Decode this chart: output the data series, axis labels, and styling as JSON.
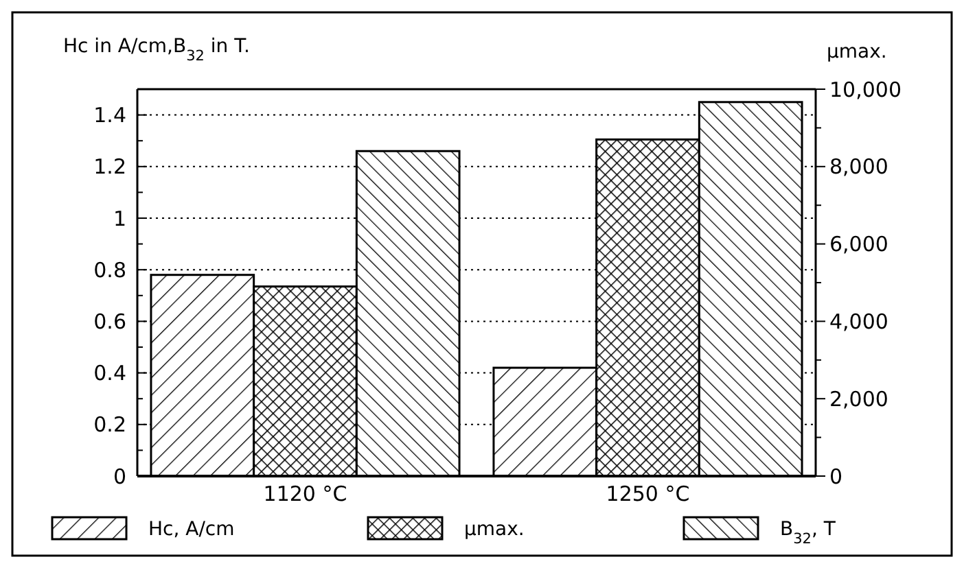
{
  "chart_data": {
    "type": "bar",
    "ylabel": "Hc in A/cm,B$_{32}$ in T.",
    "y2label": "μmax.",
    "categories": [
      "1120 °C",
      "1250 °C"
    ],
    "series": [
      {
        "name": "Hc, A/cm",
        "color": "#000000",
        "values": [
          0.78,
          0.42
        ]
      },
      {
        "name": "μmax.",
        "color": "#000000",
        "values": [
          4900,
          8700
        ],
        "axis": "y2"
      },
      {
        "name": "B$_{32}$, T",
        "color": "#000000",
        "values": [
          1.26,
          1.45
        ]
      }
    ],
    "ylim": [
      0,
      1.5
    ],
    "yticks": [
      0,
      {
        "value": 0.1,
        "label": null
      },
      0.2,
      {
        "value": 0.3,
        "label": null
      },
      0.4,
      {
        "value": 0.5,
        "label": null
      },
      0.6,
      {
        "value": 0.7,
        "label": null
      },
      0.8,
      {
        "value": 0.9,
        "label": null
      },
      1,
      {
        "value": 1.1,
        "label": null
      },
      1.2,
      {
        "value": 1.3,
        "label": null
      },
      1.4
    ],
    "y2lim": [
      0,
      10000
    ],
    "y2ticks": [
      0,
      {
        "value": 1000,
        "label": null
      },
      {
        "value": 2000,
        "label": "2,000"
      },
      {
        "value": 3000,
        "label": null
      },
      {
        "value": 4000,
        "label": "4,000"
      },
      {
        "value": 5000,
        "label": null
      },
      {
        "value": 6000,
        "label": "6,000"
      },
      {
        "value": 7000,
        "label": null
      },
      {
        "value": 8000,
        "label": "8,000"
      },
      {
        "value": 9000,
        "label": null
      },
      {
        "value": 10000,
        "label": "10,000"
      }
    ],
    "grid": "y",
    "legend": "bottom"
  }
}
